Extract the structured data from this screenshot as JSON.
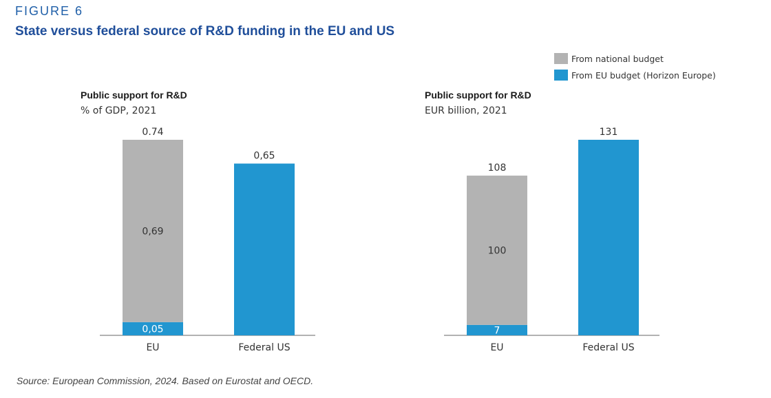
{
  "figure_label": "FIGURE 6",
  "title": "State versus federal source of R&D funding in the EU and US",
  "legend": [
    {
      "label": "From national budget",
      "color": "#b3b3b3"
    },
    {
      "label": "From EU budget (Horizon Europe)",
      "color": "#2196d0"
    }
  ],
  "source": "Source: European Commission, 2024. Based on Eurostat and OECD.",
  "chart_data": [
    {
      "type": "bar",
      "stacked": true,
      "title": "Public support for R&D",
      "subtitle": "% of GDP, 2021",
      "categories": [
        "EU",
        "Federal US"
      ],
      "series": [
        {
          "name": "From EU budget (Horizon Europe)",
          "color": "#2196d0",
          "values": [
            0.05,
            0.65
          ],
          "labels": [
            "0,05",
            "0,65"
          ]
        },
        {
          "name": "From national budget",
          "color": "#b3b3b3",
          "values": [
            0.69,
            0
          ],
          "labels": [
            "0,69",
            ""
          ]
        }
      ],
      "totals": [
        "0.74",
        ""
      ],
      "ylim": [
        0,
        0.74
      ],
      "grid": false
    },
    {
      "type": "bar",
      "stacked": true,
      "title": "Public support for R&D",
      "subtitle": "EUR billion, 2021",
      "categories": [
        "EU",
        "Federal US"
      ],
      "series": [
        {
          "name": "From EU budget (Horizon Europe)",
          "color": "#2196d0",
          "values": [
            7,
            131
          ],
          "labels": [
            "7",
            "131"
          ]
        },
        {
          "name": "From national budget",
          "color": "#b3b3b3",
          "values": [
            100,
            0
          ],
          "labels": [
            "100",
            ""
          ]
        }
      ],
      "totals": [
        "108",
        ""
      ],
      "ylim": [
        0,
        131
      ],
      "grid": false
    }
  ]
}
